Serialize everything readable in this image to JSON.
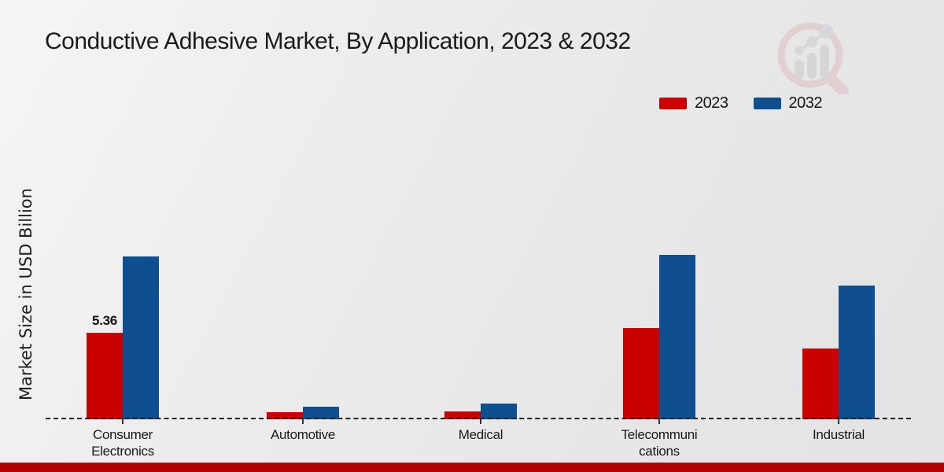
{
  "title": "Conductive Adhesive Market, By Application, 2023 & 2032",
  "y_axis_label": "Market Size in USD Billion",
  "legend": {
    "items": [
      {
        "label": "2023",
        "color": "#c90000"
      },
      {
        "label": "2032",
        "color": "#0f4e8f"
      }
    ]
  },
  "footer_bar_color": "#b10000",
  "watermark_icon": "magnifier-bar-chart-logo",
  "chart_data": {
    "type": "bar",
    "categories": [
      "Consumer Electronics",
      "Automotive",
      "Medical",
      "Telecommunications",
      "Industrial"
    ],
    "category_tick_lines": [
      [
        "Consumer",
        "Electronics"
      ],
      [
        "Automotive"
      ],
      [
        "Medical"
      ],
      [
        "Telecommuni",
        "cations"
      ],
      [
        "Industrial"
      ]
    ],
    "series": [
      {
        "name": "2023",
        "color": "#c90000",
        "values": [
          5.36,
          0.45,
          0.5,
          5.65,
          4.4
        ]
      },
      {
        "name": "2032",
        "color": "#0f4e8f",
        "values": [
          10.1,
          0.78,
          0.97,
          10.2,
          8.28
        ]
      }
    ],
    "data_labels": [
      {
        "series": "2023",
        "category": "Consumer Electronics",
        "text": "5.36"
      }
    ],
    "title": "Conductive Adhesive Market, By Application, 2023 & 2032",
    "xlabel": "",
    "ylabel": "Market Size in USD Billion",
    "ylim": [
      0,
      12
    ],
    "grid": false,
    "y_axis_ticks_visible": false,
    "baseline_style": "dashed",
    "legend_position": "top-right"
  }
}
